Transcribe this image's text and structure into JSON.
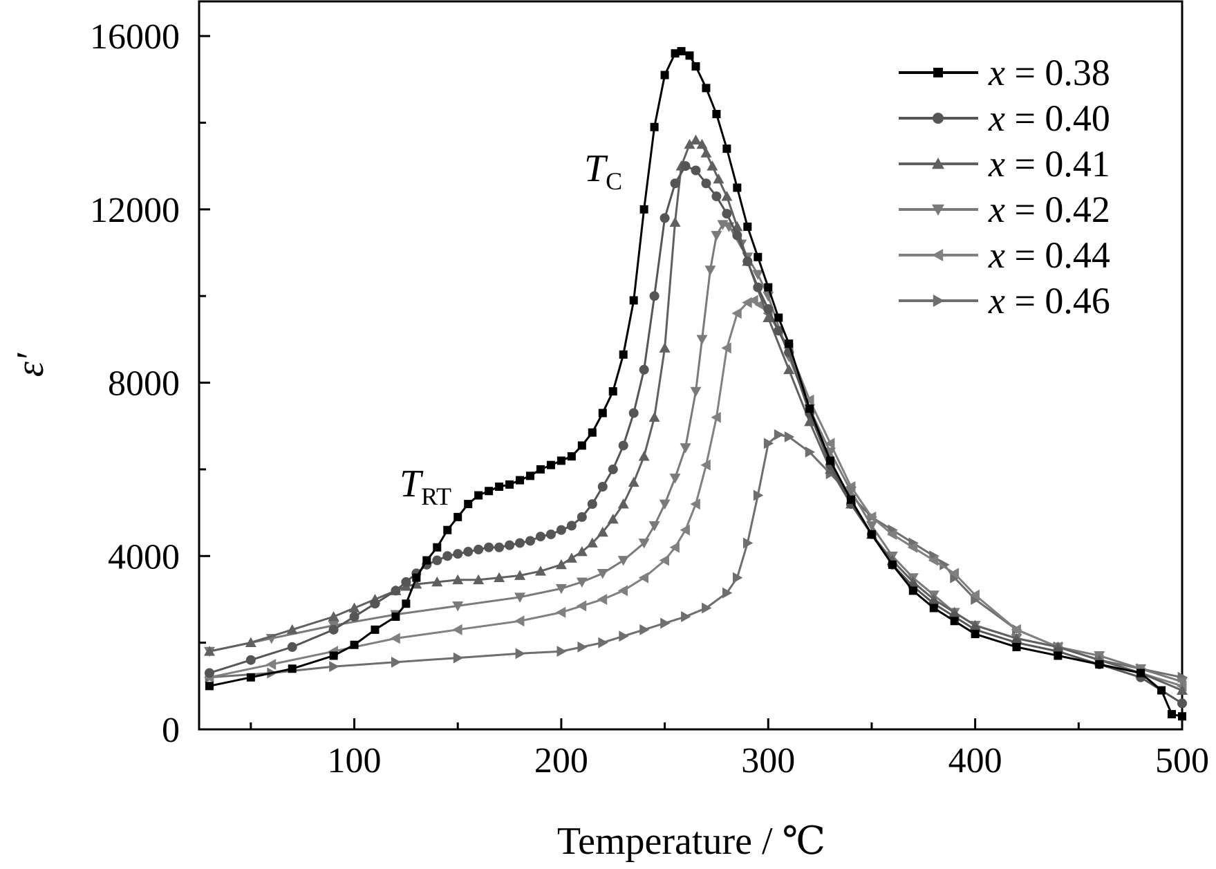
{
  "chart_data": {
    "type": "line",
    "xlabel": "Temperature / ℃",
    "ylabel": "ε′",
    "xlim": [
      25,
      500
    ],
    "ylim": [
      0,
      16800
    ],
    "x_ticks": [
      100,
      200,
      300,
      400,
      500
    ],
    "y_ticks": [
      0,
      4000,
      8000,
      12000,
      16000
    ],
    "legend_position": "top-right",
    "grid": false,
    "annotations": [
      {
        "label": "T",
        "subscript": "C",
        "x": 258,
        "y": 13100
      },
      {
        "label": "T",
        "subscript": "RT",
        "x": 150,
        "y": 5400
      }
    ],
    "series": [
      {
        "name": "x = 0.38",
        "label_var": "x",
        "label_val": "= 0.38",
        "marker": "square",
        "color": "#000000",
        "x": [
          30,
          50,
          70,
          90,
          100,
          110,
          120,
          125,
          130,
          135,
          140,
          145,
          150,
          155,
          160,
          165,
          170,
          175,
          180,
          185,
          190,
          195,
          200,
          205,
          210,
          215,
          220,
          225,
          230,
          235,
          240,
          245,
          250,
          255,
          258,
          262,
          265,
          270,
          275,
          280,
          285,
          290,
          295,
          300,
          305,
          310,
          320,
          330,
          340,
          350,
          360,
          370,
          380,
          390,
          400,
          420,
          440,
          460,
          480,
          490,
          495,
          500
        ],
        "y": [
          1000,
          1200,
          1400,
          1700,
          1950,
          2300,
          2600,
          2900,
          3500,
          3900,
          4200,
          4600,
          4900,
          5200,
          5400,
          5500,
          5600,
          5650,
          5750,
          5850,
          6000,
          6100,
          6200,
          6300,
          6550,
          6850,
          7300,
          7800,
          8650,
          9900,
          12000,
          13900,
          15100,
          15600,
          15650,
          15550,
          15300,
          14800,
          14200,
          13400,
          12500,
          11600,
          10900,
          10200,
          9500,
          8900,
          7400,
          6200,
          5300,
          4500,
          3800,
          3200,
          2800,
          2500,
          2200,
          1900,
          1700,
          1500,
          1300,
          900,
          350,
          300
        ]
      },
      {
        "name": "x = 0.40",
        "label_var": "x",
        "label_val": "= 0.40",
        "marker": "circle",
        "color": "#555555",
        "x": [
          30,
          50,
          70,
          90,
          100,
          110,
          120,
          125,
          130,
          135,
          140,
          145,
          150,
          155,
          160,
          165,
          170,
          175,
          180,
          185,
          190,
          195,
          200,
          205,
          210,
          215,
          220,
          225,
          230,
          235,
          240,
          245,
          250,
          255,
          260,
          265,
          270,
          275,
          280,
          285,
          290,
          295,
          300,
          305,
          310,
          320,
          330,
          340,
          350,
          360,
          370,
          380,
          390,
          400,
          420,
          440,
          460,
          480,
          500
        ],
        "y": [
          1300,
          1600,
          1900,
          2300,
          2600,
          2900,
          3200,
          3400,
          3600,
          3800,
          3900,
          4000,
          4050,
          4100,
          4150,
          4200,
          4200,
          4250,
          4300,
          4350,
          4450,
          4500,
          4600,
          4700,
          4900,
          5200,
          5600,
          6000,
          6550,
          7300,
          8300,
          10000,
          11800,
          12600,
          13000,
          12900,
          12600,
          12300,
          11900,
          11400,
          10800,
          10200,
          9700,
          9200,
          8700,
          7300,
          6100,
          5200,
          4500,
          3800,
          3300,
          2900,
          2600,
          2300,
          2000,
          1800,
          1500,
          1200,
          600
        ]
      },
      {
        "name": "x = 0.41",
        "label_var": "x",
        "label_val": "= 0.41",
        "marker": "triangle-up",
        "color": "#606060",
        "x": [
          30,
          50,
          70,
          90,
          100,
          110,
          120,
          125,
          130,
          140,
          150,
          160,
          170,
          180,
          190,
          200,
          205,
          210,
          215,
          220,
          225,
          230,
          235,
          240,
          245,
          250,
          255,
          258,
          262,
          265,
          268,
          270,
          273,
          276,
          280,
          285,
          290,
          300,
          310,
          320,
          330,
          340,
          350,
          360,
          370,
          380,
          390,
          400,
          420,
          440,
          460,
          480,
          500
        ],
        "y": [
          1800,
          2000,
          2300,
          2600,
          2800,
          3000,
          3200,
          3300,
          3350,
          3400,
          3450,
          3450,
          3500,
          3550,
          3650,
          3800,
          3950,
          4100,
          4300,
          4550,
          4850,
          5200,
          5700,
          6300,
          7200,
          8800,
          11700,
          13000,
          13500,
          13600,
          13500,
          13300,
          13000,
          12700,
          12300,
          11600,
          10800,
          9500,
          8300,
          7100,
          6000,
          5200,
          4500,
          3900,
          3400,
          3000,
          2700,
          2400,
          2100,
          1900,
          1600,
          1300,
          900
        ]
      },
      {
        "name": "x = 0.42",
        "label_var": "x",
        "label_val": "= 0.42",
        "marker": "triangle-down",
        "color": "#7a7a7a",
        "x": [
          30,
          60,
          90,
          120,
          150,
          180,
          200,
          210,
          220,
          230,
          240,
          245,
          250,
          255,
          260,
          265,
          268,
          272,
          275,
          278,
          281,
          284,
          287,
          290,
          295,
          300,
          310,
          320,
          330,
          340,
          350,
          360,
          370,
          380,
          390,
          400,
          420,
          440,
          460,
          480,
          500
        ],
        "y": [
          1800,
          2100,
          2400,
          2650,
          2850,
          3050,
          3250,
          3400,
          3600,
          3900,
          4300,
          4700,
          5200,
          5800,
          6500,
          7800,
          9000,
          10600,
          11400,
          11650,
          11600,
          11450,
          11200,
          10900,
          10500,
          10000,
          8600,
          7400,
          6400,
          5500,
          4700,
          4000,
          3500,
          3100,
          2700,
          2400,
          2100,
          1900,
          1700,
          1400,
          1100
        ]
      },
      {
        "name": "x = 0.44",
        "label_var": "x",
        "label_val": "= 0.44",
        "marker": "triangle-left",
        "color": "#808080",
        "x": [
          30,
          60,
          90,
          120,
          150,
          180,
          200,
          210,
          220,
          230,
          240,
          250,
          255,
          260,
          265,
          270,
          275,
          280,
          285,
          290,
          293,
          296,
          300,
          305,
          310,
          320,
          330,
          340,
          350,
          360,
          370,
          380,
          390,
          400,
          420,
          440,
          460,
          480,
          500
        ],
        "y": [
          1200,
          1500,
          1800,
          2100,
          2300,
          2500,
          2700,
          2850,
          3000,
          3200,
          3500,
          3900,
          4200,
          4600,
          5200,
          6100,
          7200,
          8800,
          9600,
          9850,
          9900,
          9800,
          9600,
          9200,
          8800,
          7600,
          6600,
          5600,
          4900,
          4500,
          4200,
          3900,
          3600,
          3100,
          2300,
          1900,
          1600,
          1300,
          1000
        ]
      },
      {
        "name": "x = 0.46",
        "label_var": "x",
        "label_val": "= 0.46",
        "marker": "triangle-right",
        "color": "#6e6e6e",
        "x": [
          30,
          60,
          90,
          120,
          150,
          180,
          200,
          210,
          220,
          230,
          240,
          250,
          260,
          270,
          280,
          285,
          290,
          295,
          300,
          305,
          310,
          320,
          330,
          340,
          350,
          360,
          370,
          380,
          385,
          390,
          400,
          420,
          440,
          460,
          480,
          500
        ],
        "y": [
          1200,
          1300,
          1450,
          1550,
          1650,
          1750,
          1800,
          1900,
          2000,
          2150,
          2300,
          2450,
          2600,
          2800,
          3150,
          3500,
          4300,
          5400,
          6600,
          6800,
          6750,
          6400,
          5900,
          5400,
          4900,
          4600,
          4300,
          4000,
          3800,
          3500,
          3000,
          2300,
          1900,
          1600,
          1400,
          1200
        ]
      }
    ]
  }
}
